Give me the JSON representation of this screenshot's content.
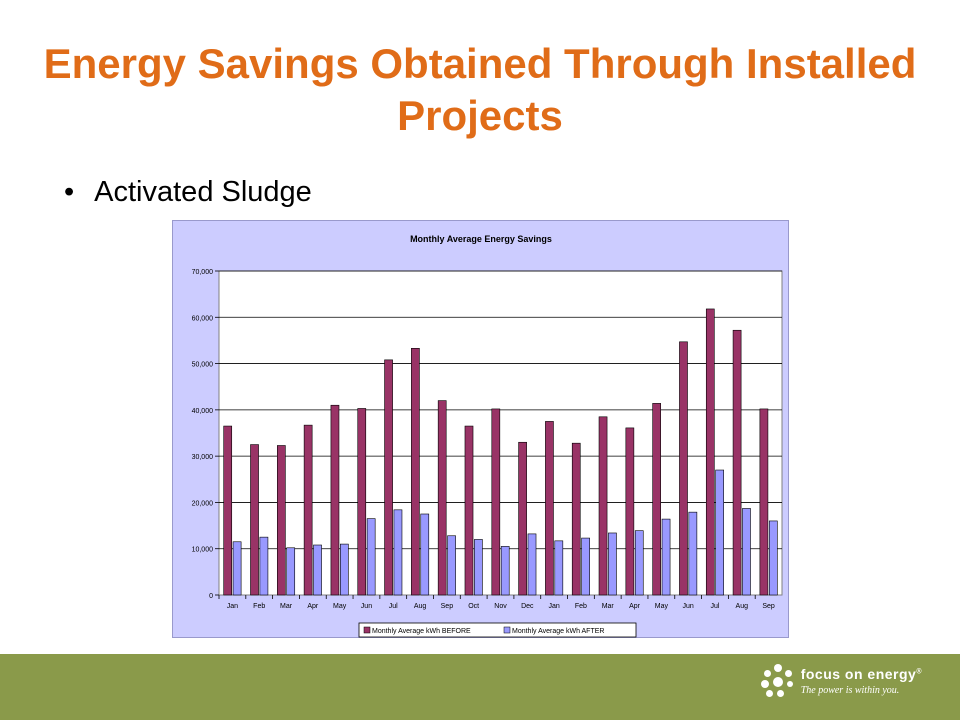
{
  "slide": {
    "title": "Energy Savings Obtained Through Installed Projects",
    "bullet_symbol": "•",
    "bullet": "Activated Sludge"
  },
  "footer": {
    "logo_name": "focus on energy",
    "logo_mark": "®",
    "tagline": "The power is within you.",
    "logo_icon": "dot-cluster-icon",
    "background_color": "#8a9a4a"
  },
  "chart_data": {
    "type": "bar",
    "title": "Monthly Average Energy Savings",
    "xlabel": "",
    "ylabel": "",
    "ylim": [
      0,
      70000
    ],
    "yticks": [
      0,
      10000,
      20000,
      30000,
      40000,
      50000,
      60000,
      70000
    ],
    "grid": true,
    "legend_position": "bottom",
    "categories": [
      "Jan",
      "Feb",
      "Mar",
      "Apr",
      "May",
      "Jun",
      "Jul",
      "Aug",
      "Sep",
      "Oct",
      "Nov",
      "Dec",
      "Jan",
      "Feb",
      "Mar",
      "Apr",
      "May",
      "Jun",
      "Jul",
      "Aug",
      "Sep"
    ],
    "series": [
      {
        "name": "Monthly Average kWh BEFORE",
        "color": "#993366",
        "values": [
          36500,
          32500,
          32300,
          36700,
          41000,
          40300,
          50800,
          53300,
          42000,
          36500,
          40200,
          33000,
          37500,
          32800,
          38500,
          36100,
          41400,
          54700,
          61800,
          57200,
          40200
        ]
      },
      {
        "name": "Monthly Average kWh AFTER",
        "color": "#9999ff",
        "values": [
          11500,
          12500,
          10200,
          10800,
          11000,
          16500,
          18400,
          17500,
          12800,
          12000,
          10500,
          13200,
          11700,
          12300,
          13400,
          13900,
          16400,
          17900,
          27000,
          18700,
          16000
        ]
      }
    ]
  }
}
